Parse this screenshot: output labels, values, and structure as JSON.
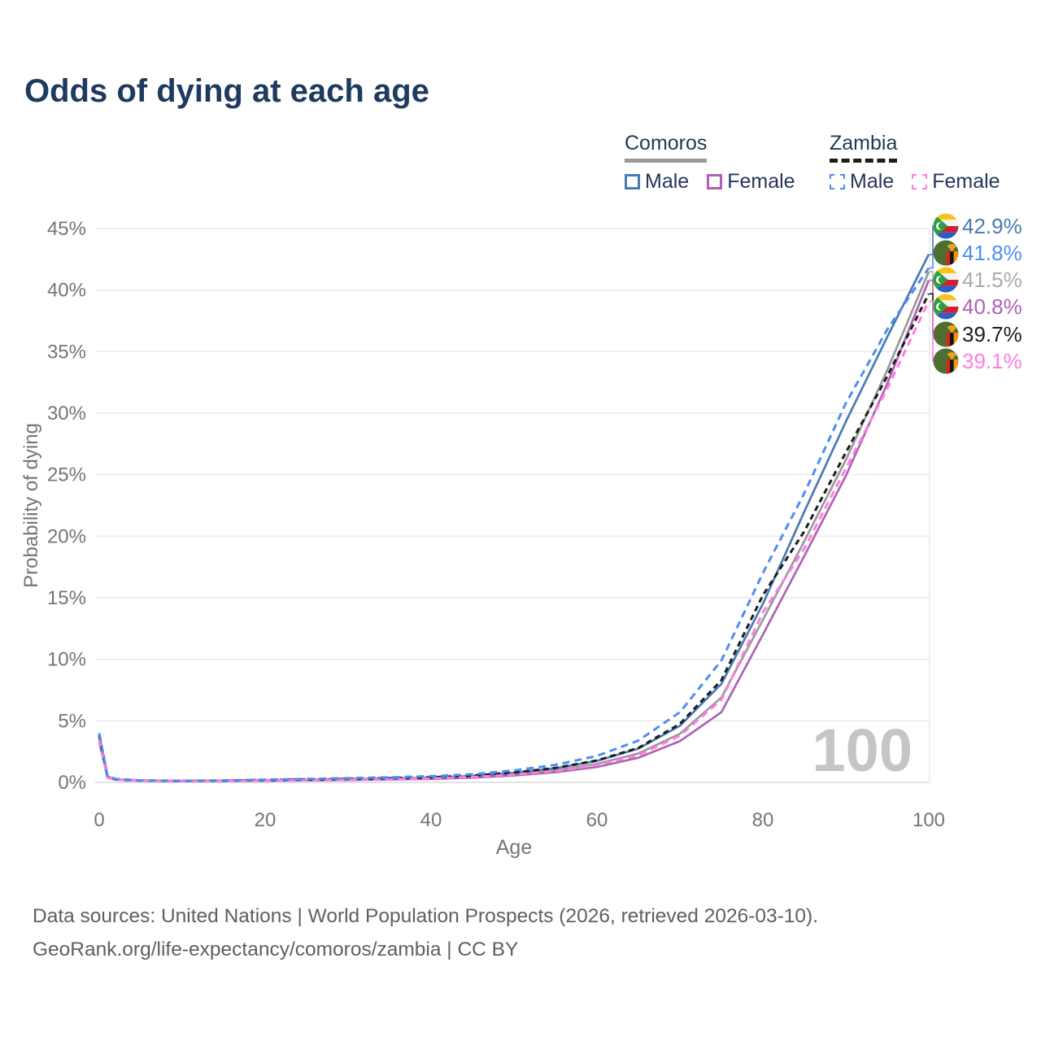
{
  "title": "Odds of dying at each age",
  "watermark": "100",
  "footer": {
    "line1": "Data sources: United Nations | World Population Prospects (2026, retrieved 2026-03-10).",
    "line2": "GeoRank.org/life-expectancy/comoros/zambia | CC BY"
  },
  "colors": {
    "title_text": "#1e3a5f",
    "legend_text": "#25365a",
    "axis_text": "#757575",
    "grid": "#e9e9e9",
    "baseline": "#d9d9d9",
    "watermark": "#c5c5c5",
    "footer_text": "#5c6066"
  },
  "legend": {
    "groups": [
      {
        "label": "Comoros",
        "underline_style": "solid",
        "underline_color": "#9a9a9a",
        "items": [
          {
            "label": "Male",
            "color": "#4a7ab5",
            "dashed": false
          },
          {
            "label": "Female",
            "color": "#ae62b5",
            "dashed": false
          }
        ]
      },
      {
        "label": "Zambia",
        "underline_style": "dashed",
        "underline_color": "#1c1c1c",
        "items": [
          {
            "label": "Male",
            "color": "#4d8ef0",
            "dashed": true
          },
          {
            "label": "Female",
            "color": "#ff7ce3",
            "dashed": true
          }
        ]
      }
    ]
  },
  "chart_data": {
    "type": "line",
    "title": "Odds of dying at each age",
    "xlabel": "Age",
    "ylabel": "Probability of dying",
    "xlim": [
      0,
      100
    ],
    "ylim": [
      0,
      45
    ],
    "x_ticks": [
      0,
      20,
      40,
      60,
      80,
      100
    ],
    "y_ticks_percent": [
      0,
      5,
      10,
      15,
      20,
      25,
      30,
      35,
      40,
      45
    ],
    "grid": "horizontal",
    "legend_position": "top-right",
    "age_counter_watermark": "100",
    "ages": [
      0,
      1,
      2,
      5,
      10,
      15,
      20,
      25,
      30,
      35,
      40,
      45,
      50,
      55,
      60,
      65,
      70,
      75,
      80,
      85,
      90,
      95,
      100
    ],
    "series": [
      {
        "name": "Comoros Male",
        "country": "Comoros",
        "sex": "Male",
        "flag": "comoros",
        "style": "solid",
        "dash": null,
        "z": 3,
        "color": "#4a7ab5",
        "label_color": "#4a7ab5",
        "end_label": "42.9%",
        "end_value": 42.9,
        "values": [
          3.9,
          0.45,
          0.25,
          0.15,
          0.12,
          0.14,
          0.18,
          0.22,
          0.26,
          0.31,
          0.38,
          0.52,
          0.78,
          1.15,
          1.75,
          2.75,
          4.6,
          8.0,
          14.5,
          22.0,
          29.3,
          36.2,
          42.9
        ]
      },
      {
        "name": "Zambia Male",
        "country": "Zambia",
        "sex": "Male",
        "flag": "zambia",
        "style": "dashed",
        "dash": "9 6",
        "z": 6,
        "color": "#4d8ef0",
        "label_color": "#4d8ef0",
        "end_label": "41.8%",
        "end_value": 41.8,
        "values": [
          4.0,
          0.5,
          0.28,
          0.16,
          0.13,
          0.16,
          0.22,
          0.28,
          0.34,
          0.41,
          0.5,
          0.66,
          0.97,
          1.42,
          2.15,
          3.4,
          5.7,
          9.9,
          17.0,
          23.5,
          30.8,
          36.8,
          41.8
        ]
      },
      {
        "name": "Comoros Both sexes",
        "country": "Comoros",
        "sex": "Both",
        "flag": "comoros",
        "style": "solid",
        "dash": null,
        "z": 1,
        "color": "#9a9a9a",
        "label_color": "#ababab",
        "end_label": "41.5%",
        "end_value": 41.5,
        "values": [
          3.6,
          0.42,
          0.23,
          0.14,
          0.11,
          0.13,
          0.16,
          0.19,
          0.23,
          0.27,
          0.33,
          0.45,
          0.67,
          0.98,
          1.5,
          2.35,
          3.95,
          6.9,
          13.2,
          19.6,
          26.2,
          33.5,
          41.5
        ]
      },
      {
        "name": "Comoros Female",
        "country": "Comoros",
        "sex": "Female",
        "flag": "comoros",
        "style": "solid",
        "dash": null,
        "z": 2,
        "color": "#ae62b5",
        "label_color": "#ae62b5",
        "end_label": "40.8%",
        "end_value": 40.8,
        "values": [
          3.3,
          0.38,
          0.21,
          0.12,
          0.1,
          0.11,
          0.13,
          0.16,
          0.19,
          0.23,
          0.28,
          0.38,
          0.56,
          0.82,
          1.25,
          2.0,
          3.35,
          5.7,
          12.0,
          18.4,
          24.9,
          32.4,
          40.8
        ]
      },
      {
        "name": "Zambia Both sexes",
        "country": "Zambia",
        "sex": "Both",
        "flag": "zambia",
        "style": "dashed",
        "dash": "7 5",
        "z": 4,
        "color": "#1c1c1c",
        "label_color": "#1c1c1c",
        "end_label": "39.7%",
        "end_value": 39.7,
        "values": [
          3.8,
          0.46,
          0.26,
          0.15,
          0.12,
          0.14,
          0.19,
          0.23,
          0.28,
          0.34,
          0.41,
          0.55,
          0.8,
          1.17,
          1.78,
          2.8,
          4.75,
          8.3,
          15.2,
          20.4,
          26.8,
          33.0,
          39.7
        ]
      },
      {
        "name": "Zambia Female",
        "country": "Zambia",
        "sex": "Female",
        "flag": "zambia",
        "style": "dashed",
        "dash": "9 6",
        "z": 5,
        "color": "#ff7ce3",
        "label_color": "#ff7ce3",
        "end_label": "39.1%",
        "end_value": 39.1,
        "values": [
          3.5,
          0.42,
          0.24,
          0.14,
          0.11,
          0.12,
          0.15,
          0.18,
          0.22,
          0.26,
          0.32,
          0.43,
          0.63,
          0.92,
          1.4,
          2.2,
          3.8,
          6.7,
          13.8,
          19.0,
          25.5,
          32.0,
          39.1
        ]
      }
    ]
  }
}
